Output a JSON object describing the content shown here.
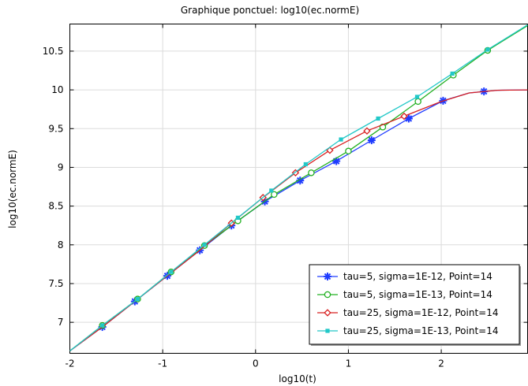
{
  "chart_data": {
    "type": "line",
    "title": "Graphique ponctuel: log10(ec.normE)",
    "xlabel": "log10(t)",
    "ylabel": "log10(ec.normE)",
    "xlim": [
      -2,
      2.93
    ],
    "ylim": [
      6.6,
      10.85
    ],
    "xticks": [
      -2,
      -1,
      0,
      1,
      2
    ],
    "xtick_labels": [
      "-2",
      "-1",
      "0",
      "1",
      "2"
    ],
    "yticks": [
      7,
      7.5,
      8,
      8.5,
      9,
      9.5,
      10,
      10.5
    ],
    "ytick_labels": [
      "7",
      "7.5",
      "8",
      "8.5",
      "9",
      "9.5",
      "10",
      "10.5"
    ],
    "grid": true,
    "legend_position": "bottom-right",
    "series": [
      {
        "name": "tau=5, sigma=1E-12, Point=14",
        "color": "#1f3cff",
        "marker": "asterisk",
        "line": [
          [
            -2,
            6.63
          ],
          [
            -1.65,
            6.94
          ],
          [
            -1.3,
            7.27
          ],
          [
            -0.95,
            7.6
          ],
          [
            -0.6,
            7.93
          ],
          [
            -0.26,
            8.25
          ],
          [
            0.1,
            8.56
          ],
          [
            0.48,
            8.83
          ],
          [
            0.87,
            9.08
          ],
          [
            1.25,
            9.35
          ],
          [
            1.65,
            9.63
          ],
          [
            2.02,
            9.86
          ],
          [
            2.3,
            9.96
          ],
          [
            2.6,
            9.995
          ],
          [
            2.93,
            10.0
          ]
        ],
        "markers": [
          [
            -1.65,
            6.94
          ],
          [
            -1.3,
            7.27
          ],
          [
            -0.95,
            7.6
          ],
          [
            -0.6,
            7.93
          ],
          [
            -0.26,
            8.25
          ],
          [
            0.1,
            8.56
          ],
          [
            0.48,
            8.83
          ],
          [
            0.87,
            9.08
          ],
          [
            1.25,
            9.35
          ],
          [
            1.65,
            9.63
          ],
          [
            2.02,
            9.86
          ],
          [
            2.46,
            9.98
          ]
        ]
      },
      {
        "name": "tau=5, sigma=1E-13, Point=14",
        "color": "#22b022",
        "marker": "circle",
        "line": [
          [
            -2,
            6.63
          ],
          [
            -1.65,
            6.96
          ],
          [
            -1.27,
            7.3
          ],
          [
            -0.91,
            7.65
          ],
          [
            -0.55,
            7.99
          ],
          [
            -0.19,
            8.31
          ],
          [
            0.2,
            8.65
          ],
          [
            0.6,
            8.93
          ],
          [
            1.0,
            9.21
          ],
          [
            1.37,
            9.52
          ],
          [
            1.75,
            9.85
          ],
          [
            2.13,
            10.19
          ],
          [
            2.5,
            10.51
          ],
          [
            2.93,
            10.83
          ]
        ],
        "markers": [
          [
            -1.65,
            6.96
          ],
          [
            -1.27,
            7.3
          ],
          [
            -0.91,
            7.65
          ],
          [
            -0.55,
            7.99
          ],
          [
            -0.19,
            8.31
          ],
          [
            0.2,
            8.65
          ],
          [
            0.6,
            8.93
          ],
          [
            1.0,
            9.21
          ],
          [
            1.37,
            9.52
          ],
          [
            1.75,
            9.85
          ],
          [
            2.13,
            10.19
          ],
          [
            2.5,
            10.51
          ]
        ]
      },
      {
        "name": "tau=25, sigma=1E-12, Point=14",
        "color": "#d82020",
        "marker": "diamond",
        "line": [
          [
            -2,
            6.63
          ],
          [
            -1.65,
            6.94
          ],
          [
            -1.3,
            7.27
          ],
          [
            -0.95,
            7.6
          ],
          [
            -0.6,
            7.93
          ],
          [
            -0.26,
            8.28
          ],
          [
            0.08,
            8.61
          ],
          [
            0.43,
            8.93
          ],
          [
            0.8,
            9.22
          ],
          [
            1.2,
            9.47
          ],
          [
            1.6,
            9.66
          ],
          [
            2.0,
            9.85
          ],
          [
            2.3,
            9.96
          ],
          [
            2.6,
            9.995
          ],
          [
            2.93,
            10.0
          ]
        ],
        "markers": [
          [
            -0.26,
            8.28
          ],
          [
            0.08,
            8.61
          ],
          [
            0.43,
            8.93
          ],
          [
            0.8,
            9.22
          ],
          [
            1.2,
            9.47
          ],
          [
            1.6,
            9.66
          ]
        ]
      },
      {
        "name": "tau=25, sigma=1E-13, Point=14",
        "color": "#22c8c8",
        "marker": "square",
        "line": [
          [
            -2,
            6.63
          ],
          [
            -1.65,
            6.96
          ],
          [
            -1.27,
            7.3
          ],
          [
            -0.91,
            7.65
          ],
          [
            -0.55,
            8.0
          ],
          [
            -0.19,
            8.35
          ],
          [
            0.17,
            8.7
          ],
          [
            0.54,
            9.04
          ],
          [
            0.92,
            9.36
          ],
          [
            1.32,
            9.63
          ],
          [
            1.74,
            9.91
          ],
          [
            2.12,
            10.21
          ],
          [
            2.5,
            10.52
          ],
          [
            2.93,
            10.84
          ]
        ],
        "markers": [
          [
            -1.65,
            6.96
          ],
          [
            -1.27,
            7.3
          ],
          [
            -0.91,
            7.65
          ],
          [
            -0.55,
            8.0
          ],
          [
            -0.19,
            8.35
          ],
          [
            0.17,
            8.7
          ],
          [
            0.54,
            9.04
          ],
          [
            0.92,
            9.36
          ],
          [
            1.32,
            9.63
          ],
          [
            1.74,
            9.91
          ],
          [
            2.12,
            10.21
          ],
          [
            2.5,
            10.52
          ]
        ]
      }
    ]
  }
}
